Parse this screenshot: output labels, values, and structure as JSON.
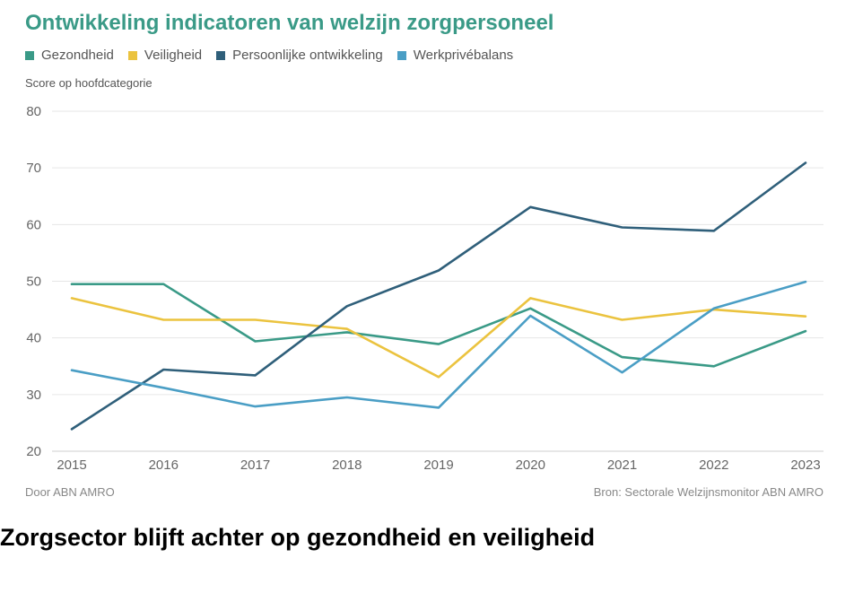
{
  "chart_data": {
    "type": "line",
    "title": "Ontwikkeling indicatoren van welzijn zorgpersoneel",
    "ylabel": "Score op hoofdcategorie",
    "xlabel": "",
    "x": [
      "2015",
      "2016",
      "2017",
      "2018",
      "2019",
      "2020",
      "2021",
      "2022",
      "2023"
    ],
    "ylim": [
      20,
      80
    ],
    "yticks": [
      20,
      30,
      40,
      50,
      60,
      70,
      80
    ],
    "grid": true,
    "legend_position": "top-left",
    "series": [
      {
        "name": "Gezondheid",
        "color": "#3a9a87",
        "values": [
          49.5,
          49.5,
          39.4,
          41.0,
          38.9,
          45.2,
          36.6,
          35.0,
          41.2
        ]
      },
      {
        "name": "Veiligheid",
        "color": "#ebc33f",
        "values": [
          47.0,
          43.2,
          43.2,
          41.6,
          33.1,
          47.0,
          43.2,
          45.0,
          43.8
        ]
      },
      {
        "name": "Persoonlijke ontwikkeling",
        "color": "#2f5f7a",
        "values": [
          23.9,
          34.4,
          33.4,
          45.6,
          51.9,
          63.1,
          59.5,
          58.9,
          70.9
        ]
      },
      {
        "name": "Werkprivébalans",
        "color": "#4a9ec5",
        "values": [
          34.3,
          31.2,
          27.9,
          29.5,
          27.7,
          43.9,
          33.9,
          45.2,
          49.9
        ]
      }
    ]
  },
  "footer": {
    "left": "Door ABN AMRO",
    "right": "Bron: Sectorale Welzijnsmonitor ABN AMRO"
  },
  "headline": "Zorgsector blijft achter op gezondheid en veiligheid"
}
